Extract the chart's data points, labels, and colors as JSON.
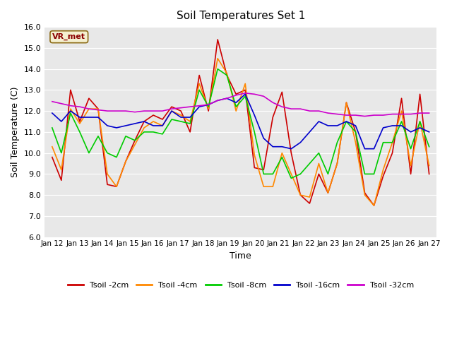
{
  "title": "Soil Temperatures Set 1",
  "xlabel": "Time",
  "ylabel": "Soil Temperature (C)",
  "ylim": [
    6.0,
    16.0
  ],
  "yticks": [
    6.0,
    7.0,
    8.0,
    9.0,
    10.0,
    11.0,
    12.0,
    13.0,
    14.0,
    15.0,
    16.0
  ],
  "xtick_labels": [
    "Jan 12",
    "Jan 13",
    "Jan 14",
    "Jan 15",
    "Jan 16",
    "Jan 17",
    "Jan 18",
    "Jan 19",
    "Jan 20",
    "Jan 21",
    "Jan 22",
    "Jan 23",
    "Jan 24",
    "Jan 25",
    "Jan 26",
    "Jan 27"
  ],
  "background_color": "#e8e8e8",
  "label_box_text": "VR_met",
  "series": {
    "Tsoil -2cm": {
      "color": "#cc0000",
      "data": [
        9.8,
        8.7,
        13.0,
        11.5,
        12.6,
        12.1,
        8.5,
        8.4,
        9.6,
        10.6,
        11.5,
        11.8,
        11.6,
        12.2,
        12.0,
        11.0,
        13.7,
        12.0,
        15.4,
        13.7,
        12.8,
        13.0,
        9.3,
        9.2,
        11.7,
        12.9,
        10.0,
        8.0,
        7.6,
        9.0,
        8.1,
        9.5,
        12.4,
        11.0,
        8.1,
        7.5,
        8.9,
        10.0,
        12.6,
        9.0,
        12.8,
        9.0
      ]
    },
    "Tsoil -4cm": {
      "color": "#ff8800",
      "data": [
        10.3,
        9.2,
        12.1,
        11.4,
        12.1,
        12.1,
        9.0,
        8.4,
        9.6,
        10.4,
        11.2,
        11.5,
        11.3,
        12.0,
        11.8,
        11.5,
        13.3,
        12.1,
        14.5,
        13.8,
        12.0,
        13.3,
        9.9,
        8.4,
        8.4,
        10.0,
        9.0,
        8.0,
        7.9,
        9.5,
        8.1,
        9.5,
        12.4,
        10.5,
        8.0,
        7.5,
        9.2,
        10.5,
        12.0,
        9.4,
        11.5,
        9.4
      ]
    },
    "Tsoil -8cm": {
      "color": "#00cc00",
      "data": [
        11.2,
        10.0,
        11.9,
        11.0,
        10.0,
        10.8,
        10.0,
        9.8,
        10.8,
        10.6,
        11.0,
        11.0,
        10.9,
        11.6,
        11.5,
        11.4,
        13.0,
        12.2,
        14.0,
        13.7,
        12.2,
        12.7,
        11.0,
        9.0,
        9.0,
        9.8,
        8.8,
        9.0,
        9.5,
        10.0,
        9.0,
        10.5,
        11.5,
        11.0,
        9.0,
        9.0,
        10.5,
        10.5,
        11.5,
        10.2,
        11.5,
        10.3
      ]
    },
    "Tsoil -16cm": {
      "color": "#0000cc",
      "data": [
        11.9,
        11.5,
        12.0,
        11.7,
        11.7,
        11.7,
        11.3,
        11.2,
        11.3,
        11.4,
        11.5,
        11.3,
        11.3,
        12.0,
        11.7,
        11.7,
        12.2,
        12.3,
        12.5,
        12.6,
        12.4,
        12.8,
        11.8,
        10.7,
        10.3,
        10.3,
        10.2,
        10.5,
        11.0,
        11.5,
        11.3,
        11.3,
        11.5,
        11.3,
        10.2,
        10.2,
        11.2,
        11.3,
        11.3,
        11.0,
        11.2,
        11.0
      ]
    },
    "Tsoil -32cm": {
      "color": "#cc00cc",
      "data": [
        12.45,
        12.35,
        12.25,
        12.2,
        12.1,
        12.05,
        12.0,
        12.0,
        12.0,
        11.95,
        12.0,
        12.0,
        12.0,
        12.1,
        12.15,
        12.2,
        12.25,
        12.3,
        12.5,
        12.6,
        12.75,
        12.85,
        12.8,
        12.7,
        12.4,
        12.2,
        12.1,
        12.1,
        12.0,
        12.0,
        11.9,
        11.85,
        11.8,
        11.8,
        11.75,
        11.8,
        11.8,
        11.85,
        11.85,
        11.85,
        11.9,
        11.9
      ]
    }
  },
  "legend_labels": [
    "Tsoil -2cm",
    "Tsoil -4cm",
    "Tsoil -8cm",
    "Tsoil -16cm",
    "Tsoil -32cm"
  ],
  "legend_colors": [
    "#cc0000",
    "#ff8800",
    "#00cc00",
    "#0000cc",
    "#cc00cc"
  ]
}
